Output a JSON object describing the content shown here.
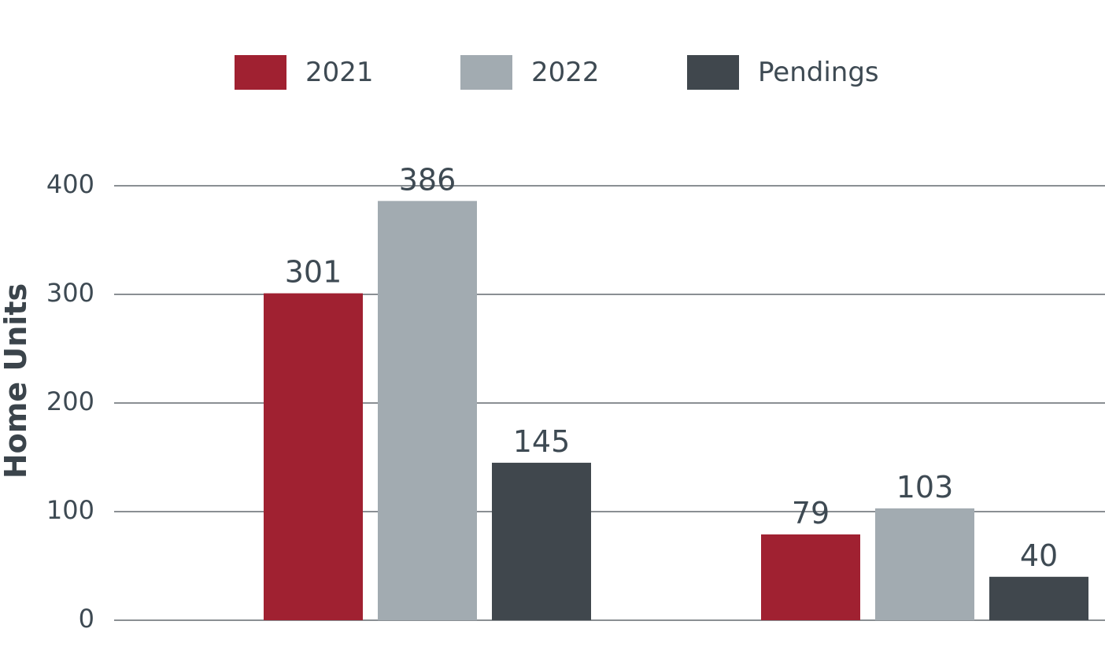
{
  "colors": {
    "2021": "#a02131",
    "2022": "#a2abb1",
    "pendings": "#40474d",
    "grid": "#8a8f93",
    "text": "#3e4a53"
  },
  "legend": [
    {
      "label": "2021",
      "color": "#a02131"
    },
    {
      "label": "2022",
      "color": "#a2abb1"
    },
    {
      "label": "Pendings",
      "color": "#40474d"
    }
  ],
  "chart_data": {
    "type": "bar",
    "title": "",
    "xlabel": "",
    "ylabel": "Home Units",
    "ylim": [
      0,
      400
    ],
    "yticks": [
      0,
      100,
      200,
      300,
      400
    ],
    "grid": true,
    "legend_position": "top-center",
    "categories": [
      "",
      ""
    ],
    "series": [
      {
        "name": "2021",
        "values": [
          301,
          79
        ],
        "color": "#a02131"
      },
      {
        "name": "2022",
        "values": [
          386,
          103
        ],
        "color": "#a2abb1"
      },
      {
        "name": "Pendings",
        "values": [
          145,
          40
        ],
        "color": "#40474d"
      }
    ]
  }
}
